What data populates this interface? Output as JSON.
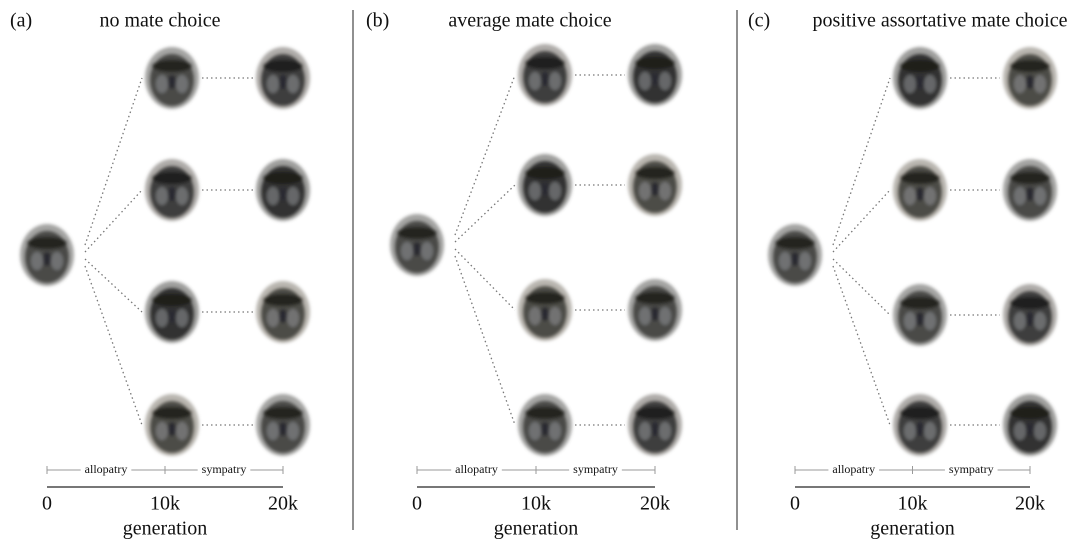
{
  "panels": [
    {
      "label": "(a)",
      "title": "no mate choice",
      "phases": [
        "allopatry",
        "sympatry"
      ],
      "axis": {
        "label": "generation",
        "xlim": [
          0,
          20000
        ],
        "ticks": [
          {
            "value": 0,
            "label": "0"
          },
          {
            "value": 10000,
            "label": "10k"
          },
          {
            "value": 20000,
            "label": "20k"
          }
        ]
      }
    },
    {
      "label": "(b)",
      "title": "average mate choice",
      "phases": [
        "allopatry",
        "sympatry"
      ],
      "axis": {
        "label": "generation",
        "xlim": [
          0,
          20000
        ],
        "ticks": [
          {
            "value": 0,
            "label": "0"
          },
          {
            "value": 10000,
            "label": "10k"
          },
          {
            "value": 20000,
            "label": "20k"
          }
        ]
      }
    },
    {
      "label": "(c)",
      "title": "positive assortative mate choice",
      "phases": [
        "allopatry",
        "sympatry"
      ],
      "axis": {
        "label": "generation",
        "xlim": [
          0,
          20000
        ],
        "ticks": [
          {
            "value": 0,
            "label": "0"
          },
          {
            "value": 10000,
            "label": "10k"
          },
          {
            "value": 20000,
            "label": "20k"
          }
        ]
      }
    }
  ]
}
